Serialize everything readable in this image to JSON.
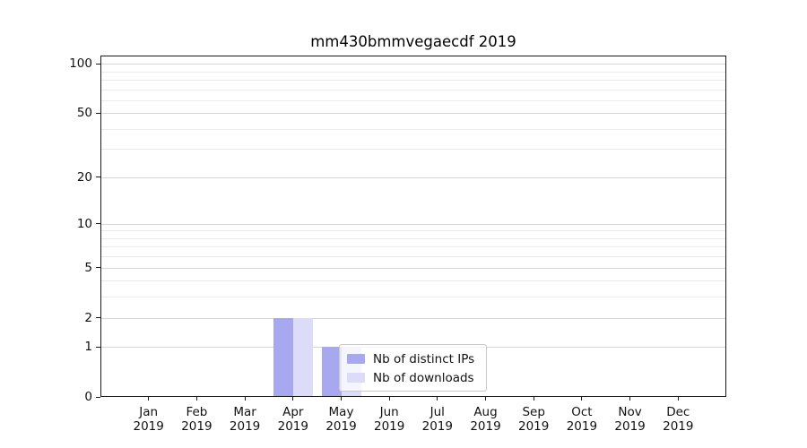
{
  "page": {
    "background": "#ffffff"
  },
  "chart_data": {
    "type": "bar",
    "title": "mm430bmmvegaecdf 2019",
    "categories": [
      "Jan",
      "Feb",
      "Mar",
      "Apr",
      "May",
      "Jun",
      "Jul",
      "Aug",
      "Sep",
      "Oct",
      "Nov",
      "Dec"
    ],
    "year_label": "2019",
    "series": [
      {
        "name": "Nb of distinct IPs",
        "color": "#a8a8f0",
        "values": [
          0,
          0,
          0,
          2,
          1,
          0,
          0,
          0,
          0,
          0,
          0,
          0
        ]
      },
      {
        "name": "Nb of downloads",
        "color": "#dcdcf8",
        "values": [
          0,
          0,
          0,
          2,
          1,
          0,
          0,
          0,
          0,
          0,
          0,
          0
        ]
      }
    ],
    "yscale": "log1p",
    "ylim": [
      0,
      112
    ],
    "yticks": [
      0,
      1,
      2,
      5,
      10,
      20,
      50,
      100
    ],
    "minor_yticks": [
      3,
      4,
      6,
      7,
      8,
      9,
      30,
      40,
      60,
      70,
      80,
      90
    ],
    "grid": "horizontal",
    "legend_position": "lower center",
    "colors": {
      "axis": "#1a1a1a",
      "major_grid": "#d5d5d5",
      "minor_grid": "#eaeaea",
      "text": "#111111"
    }
  }
}
